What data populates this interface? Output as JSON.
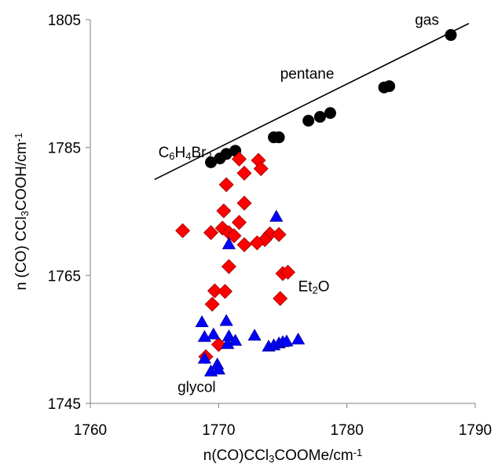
{
  "chart_data": {
    "type": "scatter",
    "xlabel": "n(CO)CCl3COOMe/cm-1",
    "xlabel_parts": [
      {
        "text": "n(CO)CCl",
        "sub": false
      },
      {
        "text": "3",
        "sub": true
      },
      {
        "text": "COOMe/cm",
        "sub": false
      },
      {
        "text": "-1",
        "sup": true
      }
    ],
    "ylabel": "n (CO) CCl3COOH/cm-1",
    "ylabel_parts": [
      {
        "text": "n (CO) CCl",
        "sub": false
      },
      {
        "text": "3",
        "sub": true
      },
      {
        "text": "COOH/cm",
        "sub": false
      },
      {
        "text": "-1",
        "sup": true
      }
    ],
    "xlim": [
      1760,
      1790
    ],
    "ylim": [
      1745,
      1805
    ],
    "x_ticks": [
      1760,
      1770,
      1780,
      1790
    ],
    "y_ticks": [
      1745,
      1765,
      1785,
      1805
    ],
    "grid": false,
    "legend": "none",
    "annotations": [
      {
        "text": "gas",
        "x": 1785.3,
        "y": 1804.2
      },
      {
        "text": "pentane",
        "x": 1774.8,
        "y": 1795.8
      },
      {
        "text_parts": [
          {
            "text": "C"
          },
          {
            "text": "6",
            "sub": true
          },
          {
            "text": "H"
          },
          {
            "text": "4",
            "sub": true
          },
          {
            "text": "Br"
          },
          {
            "text": "2",
            "sub": true
          }
        ],
        "text": "C6H4Br2",
        "x": 1765.3,
        "y": 1783.5
      },
      {
        "text_parts": [
          {
            "text": "Et"
          },
          {
            "text": "2",
            "sub": true
          },
          {
            "text": "O"
          }
        ],
        "text": "Et2O",
        "x": 1776.2,
        "y": 1762.5
      },
      {
        "text": "glycol",
        "x": 1766.8,
        "y": 1746.8
      }
    ],
    "fit_line": {
      "x": [
        1765,
        1789.5
      ],
      "y": [
        1780,
        1804.4
      ]
    },
    "series": [
      {
        "marker": "circle",
        "color": "#000000",
        "points": [
          [
            1769.4,
            1782.7
          ],
          [
            1770.1,
            1783.3
          ],
          [
            1770.6,
            1784.0
          ],
          [
            1771.3,
            1784.5
          ],
          [
            1774.3,
            1786.6
          ],
          [
            1774.7,
            1786.6
          ],
          [
            1777.0,
            1789.2
          ],
          [
            1777.9,
            1789.8
          ],
          [
            1778.7,
            1790.4
          ],
          [
            1782.9,
            1794.4
          ],
          [
            1783.3,
            1794.6
          ],
          [
            1788.1,
            1802.6
          ]
        ]
      },
      {
        "marker": "diamond",
        "color": "#ff0000",
        "points": [
          [
            1771.6,
            1783.2
          ],
          [
            1773.1,
            1783.0
          ],
          [
            1773.3,
            1781.7
          ],
          [
            1772.0,
            1781.0
          ],
          [
            1770.6,
            1779.2
          ],
          [
            1772.0,
            1776.3
          ],
          [
            1770.4,
            1775.1
          ],
          [
            1771.6,
            1773.3
          ],
          [
            1770.3,
            1772.4
          ],
          [
            1767.2,
            1772.0
          ],
          [
            1769.4,
            1771.7
          ],
          [
            1770.8,
            1771.7
          ],
          [
            1771.2,
            1771.2
          ],
          [
            1774.0,
            1771.5
          ],
          [
            1774.7,
            1771.4
          ],
          [
            1773.6,
            1770.6
          ],
          [
            1772.0,
            1769.8
          ],
          [
            1773.0,
            1770.1
          ],
          [
            1770.8,
            1766.4
          ],
          [
            1775.0,
            1765.3
          ],
          [
            1775.4,
            1765.5
          ],
          [
            1769.7,
            1762.6
          ],
          [
            1770.5,
            1762.5
          ],
          [
            1774.8,
            1761.4
          ],
          [
            1769.5,
            1760.5
          ],
          [
            1770.0,
            1754.2
          ],
          [
            1769.0,
            1752.3
          ]
        ]
      },
      {
        "marker": "triangle",
        "color": "#0000ff",
        "points": [
          [
            1774.5,
            1774.2
          ],
          [
            1770.8,
            1769.9
          ],
          [
            1768.7,
            1757.7
          ],
          [
            1770.6,
            1757.9
          ],
          [
            1768.9,
            1755.4
          ],
          [
            1769.6,
            1755.8
          ],
          [
            1770.8,
            1755.5
          ],
          [
            1771.3,
            1754.8
          ],
          [
            1772.8,
            1755.6
          ],
          [
            1773.9,
            1753.9
          ],
          [
            1774.3,
            1754.1
          ],
          [
            1774.7,
            1754.4
          ],
          [
            1775.0,
            1754.6
          ],
          [
            1775.3,
            1754.7
          ],
          [
            1776.2,
            1755.0
          ],
          [
            1770.7,
            1754.3
          ],
          [
            1768.9,
            1752.0
          ],
          [
            1769.9,
            1751.1
          ],
          [
            1769.4,
            1750.0
          ],
          [
            1770.0,
            1750.3
          ]
        ]
      }
    ]
  }
}
